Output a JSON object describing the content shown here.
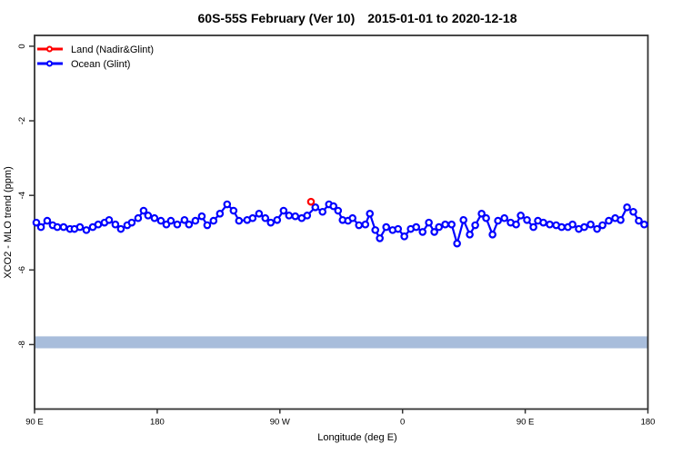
{
  "chart_data": {
    "type": "line",
    "title": "60S-55S February (Ver 10)",
    "subtitle_date_range": "2015-01-01 to 2020-12-18",
    "xlabel": "Longitude (deg E)",
    "ylabel": "XCO2 - MLO trend (ppm)",
    "xlim": [
      90,
      540
    ],
    "ylim": [
      -9.73,
      0.29
    ],
    "grid": false,
    "x_ticks": {
      "values": [
        90,
        180,
        270,
        360,
        450,
        540
      ],
      "labels": [
        "90 E",
        "180",
        "90 W",
        "0",
        "90 E",
        "180"
      ]
    },
    "y_ticks": {
      "values": [
        0,
        -2,
        -4,
        -6,
        -8
      ],
      "labels": [
        "0",
        "-2",
        "-4",
        "-6",
        "-8"
      ]
    },
    "legend": {
      "position": "top-left",
      "items": [
        {
          "label": "Land (Nadir&Glint)",
          "color": "#FF0000",
          "series": "land"
        },
        {
          "label": "Ocean (Glint)",
          "color": "#0000FF",
          "series": "ocean"
        }
      ]
    },
    "band": {
      "ymin": -8.1,
      "ymax": -7.78,
      "color": "#a8bddb"
    },
    "colors": {
      "axis": "#333333",
      "text": "#000000",
      "background": "#ffffff"
    },
    "series": [
      {
        "name": "Land (Nadir&Glint)",
        "color": "#FF0000",
        "marker": "open-circle",
        "points": [
          [
            292.8,
            -4.17
          ]
        ]
      },
      {
        "name": "Ocean (Glint)",
        "color": "#0000FF",
        "marker": "open-circle",
        "points": [
          [
            91.3,
            -4.73
          ],
          [
            94.7,
            -4.85
          ],
          [
            99.3,
            -4.68
          ],
          [
            103.3,
            -4.8
          ],
          [
            106.7,
            -4.85
          ],
          [
            111.3,
            -4.85
          ],
          [
            116,
            -4.9
          ],
          [
            119.3,
            -4.9
          ],
          [
            123.3,
            -4.85
          ],
          [
            128,
            -4.93
          ],
          [
            132.7,
            -4.85
          ],
          [
            136.7,
            -4.78
          ],
          [
            141.3,
            -4.73
          ],
          [
            144.7,
            -4.66
          ],
          [
            149.3,
            -4.78
          ],
          [
            153.3,
            -4.9
          ],
          [
            158,
            -4.8
          ],
          [
            161.3,
            -4.73
          ],
          [
            166,
            -4.61
          ],
          [
            170,
            -4.41
          ],
          [
            173.3,
            -4.54
          ],
          [
            178,
            -4.61
          ],
          [
            182.7,
            -4.68
          ],
          [
            186.7,
            -4.78
          ],
          [
            190,
            -4.68
          ],
          [
            194.7,
            -4.78
          ],
          [
            200,
            -4.66
          ],
          [
            203.3,
            -4.78
          ],
          [
            208,
            -4.68
          ],
          [
            212.7,
            -4.56
          ],
          [
            216.7,
            -4.8
          ],
          [
            221.3,
            -4.68
          ],
          [
            226,
            -4.49
          ],
          [
            231.3,
            -4.24
          ],
          [
            236,
            -4.41
          ],
          [
            240,
            -4.68
          ],
          [
            246,
            -4.66
          ],
          [
            250,
            -4.61
          ],
          [
            254.7,
            -4.49
          ],
          [
            259.3,
            -4.61
          ],
          [
            263.3,
            -4.73
          ],
          [
            268,
            -4.66
          ],
          [
            272.7,
            -4.41
          ],
          [
            276.7,
            -4.54
          ],
          [
            281.3,
            -4.56
          ],
          [
            286,
            -4.61
          ],
          [
            290,
            -4.54
          ],
          [
            296,
            -4.32
          ],
          [
            301.3,
            -4.44
          ],
          [
            306,
            -4.24
          ],
          [
            309.3,
            -4.29
          ],
          [
            312.7,
            -4.41
          ],
          [
            316,
            -4.66
          ],
          [
            320,
            -4.68
          ],
          [
            323.3,
            -4.61
          ],
          [
            328,
            -4.8
          ],
          [
            332.7,
            -4.78
          ],
          [
            336,
            -4.49
          ],
          [
            340,
            -4.93
          ],
          [
            343.3,
            -5.15
          ],
          [
            348,
            -4.85
          ],
          [
            352.7,
            -4.93
          ],
          [
            356.7,
            -4.9
          ],
          [
            361.3,
            -5.1
          ],
          [
            366,
            -4.9
          ],
          [
            370,
            -4.85
          ],
          [
            374.7,
            -4.98
          ],
          [
            379.3,
            -4.73
          ],
          [
            383.3,
            -4.98
          ],
          [
            386.7,
            -4.85
          ],
          [
            391.3,
            -4.78
          ],
          [
            396,
            -4.78
          ],
          [
            400,
            -5.29
          ],
          [
            404.7,
            -4.66
          ],
          [
            409.3,
            -5.05
          ],
          [
            413.3,
            -4.8
          ],
          [
            418,
            -4.49
          ],
          [
            421.3,
            -4.61
          ],
          [
            426,
            -5.05
          ],
          [
            430,
            -4.68
          ],
          [
            434.7,
            -4.61
          ],
          [
            439.3,
            -4.73
          ],
          [
            443.3,
            -4.78
          ],
          [
            446.7,
            -4.54
          ],
          [
            451.3,
            -4.66
          ],
          [
            456,
            -4.85
          ],
          [
            459.3,
            -4.68
          ],
          [
            463.3,
            -4.73
          ],
          [
            468,
            -4.78
          ],
          [
            472.7,
            -4.8
          ],
          [
            476.7,
            -4.85
          ],
          [
            481.3,
            -4.85
          ],
          [
            484.7,
            -4.78
          ],
          [
            489.3,
            -4.9
          ],
          [
            493.3,
            -4.85
          ],
          [
            498,
            -4.78
          ],
          [
            502.7,
            -4.9
          ],
          [
            506.7,
            -4.8
          ],
          [
            511.3,
            -4.68
          ],
          [
            516,
            -4.61
          ],
          [
            520,
            -4.66
          ],
          [
            524.7,
            -4.32
          ],
          [
            529.3,
            -4.44
          ],
          [
            533.3,
            -4.68
          ],
          [
            537.3,
            -4.78
          ]
        ]
      }
    ]
  }
}
